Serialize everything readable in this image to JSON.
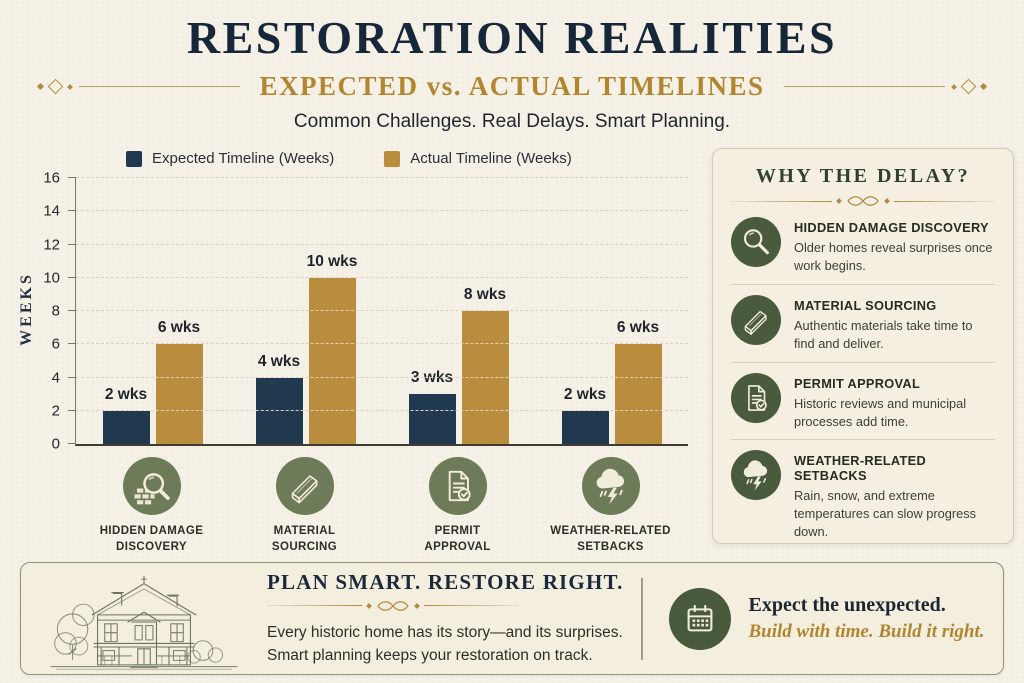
{
  "header": {
    "title": "RESTORATION REALITIES",
    "subtitle": "EXPECTED vs. ACTUAL TIMELINES",
    "tagline": "Common Challenges. Real Delays. Smart Planning."
  },
  "chart_data": {
    "type": "bar",
    "title": "",
    "xlabel": "",
    "ylabel": "WEEKS",
    "ylim": [
      0,
      16
    ],
    "ytick_step": 2,
    "grid": true,
    "grid_style": "dashed",
    "legend_position": "top-left",
    "unit_suffix": "wks",
    "categories": [
      "HIDDEN DAMAGE\nDISCOVERY",
      "MATERIAL\nSOURCING",
      "PERMIT\nAPPROVAL",
      "WEATHER-RELATED\nSETBACKS"
    ],
    "category_icons": [
      "magnifier-bricks-icon",
      "lumber-icon",
      "permit-document-icon",
      "storm-cloud-icon"
    ],
    "series": [
      {
        "name": "Expected Timeline (Weeks)",
        "color": "#20394e",
        "values": [
          2,
          4,
          3,
          2
        ]
      },
      {
        "name": "Actual Timeline (Weeks)",
        "color": "#b98c3e",
        "values": [
          6,
          10,
          8,
          6
        ]
      }
    ],
    "bar_value_labels": [
      [
        "2 wks",
        "6 wks"
      ],
      [
        "4 wks",
        "10 wks"
      ],
      [
        "3 wks",
        "8 wks"
      ],
      [
        "2 wks",
        "6 wks"
      ]
    ]
  },
  "sidebar": {
    "title": "WHY THE DELAY?",
    "items": [
      {
        "icon": "magnifier-icon",
        "title": "HIDDEN DAMAGE DISCOVERY",
        "desc": "Older homes reveal surprises once work begins."
      },
      {
        "icon": "lumber-icon",
        "title": "MATERIAL SOURCING",
        "desc": "Authentic materials take time to find and deliver."
      },
      {
        "icon": "permit-document-icon",
        "title": "PERMIT APPROVAL",
        "desc": "Historic reviews and municipal processes add time."
      },
      {
        "icon": "storm-cloud-icon",
        "title": "WEATHER-RELATED SETBACKS",
        "desc": "Rain, snow, and extreme temperatures can slow progress down."
      }
    ]
  },
  "footer": {
    "title": "PLAN SMART. RESTORE RIGHT.",
    "body_line1": "Every historic home has its story—and its surprises.",
    "body_line2": "Smart planning keeps your restoration on track.",
    "house_illustration": "victorian-house-illustration",
    "callout_icon": "calendar-icon",
    "callout_title": "Expect the unexpected.",
    "callout_sub": "Build with time. Build it right."
  },
  "colors": {
    "background": "#f6f1e7",
    "title_navy": "#17273a",
    "accent_gold": "#b1862f",
    "bar_navy": "#20394e",
    "bar_gold": "#b98c3e",
    "chart_icon_olive": "#6e7b58",
    "sidebar_icon_green": "#4a5a3c",
    "panel_title_green": "#31402e"
  }
}
